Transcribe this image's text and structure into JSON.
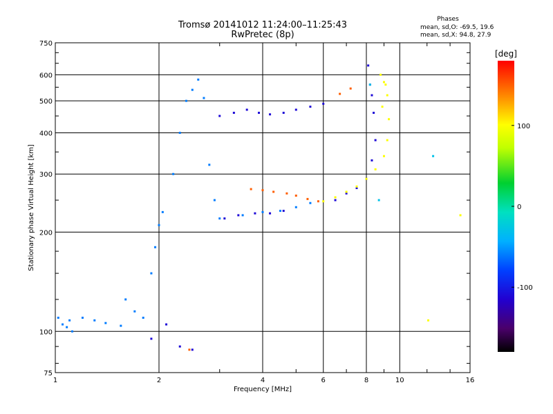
{
  "chart_data": {
    "type": "scatter",
    "title": "Tromsø 20141012 11:24:00–11:25:43",
    "subtitle": "RwPretec (8p)",
    "xlabel": "Frequency [MHz]",
    "ylabel": "Stationary phase Virtual Height [km]",
    "x_scale": "log",
    "y_scale": "log",
    "xlim": [
      1,
      16
    ],
    "ylim": [
      75,
      750
    ],
    "x_ticks": [
      1,
      2,
      4,
      6,
      8,
      10,
      16
    ],
    "y_ticks": [
      75,
      100,
      200,
      300,
      400,
      500,
      600,
      750
    ],
    "grid": true,
    "stats": {
      "heading": "Phases",
      "o_line": "mean, sd,O: -69.5, 19.6",
      "x_line": "mean, sd,X:  94.8, 27.9"
    },
    "colorbar": {
      "label": "[deg]",
      "range": [
        -180,
        180
      ],
      "ticks": [
        100,
        0,
        -100
      ]
    },
    "series": [
      {
        "color_deg": -60,
        "points": [
          [
            1.02,
            110
          ],
          [
            1.05,
            105
          ],
          [
            1.08,
            103
          ],
          [
            1.1,
            108
          ],
          [
            1.12,
            100
          ],
          [
            1.2,
            110
          ],
          [
            1.3,
            108
          ],
          [
            1.4,
            106
          ],
          [
            1.55,
            104
          ],
          [
            1.6,
            125
          ],
          [
            1.7,
            115
          ],
          [
            1.8,
            110
          ],
          [
            1.9,
            150
          ],
          [
            1.95,
            180
          ],
          [
            2.0,
            210
          ],
          [
            2.05,
            230
          ],
          [
            2.2,
            300
          ],
          [
            2.3,
            400
          ],
          [
            2.4,
            500
          ],
          [
            2.5,
            540
          ],
          [
            2.6,
            580
          ],
          [
            2.7,
            510
          ],
          [
            2.8,
            320
          ],
          [
            2.9,
            250
          ],
          [
            3.0,
            220
          ],
          [
            3.5,
            225
          ],
          [
            4.0,
            230
          ],
          [
            4.5,
            232
          ],
          [
            5.0,
            238
          ],
          [
            5.5,
            245
          ]
        ]
      },
      {
        "color_deg": -110,
        "points": [
          [
            1.9,
            95
          ],
          [
            2.1,
            105
          ],
          [
            2.3,
            90
          ],
          [
            2.5,
            88
          ],
          [
            3.0,
            450
          ],
          [
            3.3,
            460
          ],
          [
            3.6,
            470
          ],
          [
            3.9,
            460
          ],
          [
            4.2,
            455
          ],
          [
            4.6,
            460
          ],
          [
            5.0,
            470
          ],
          [
            5.5,
            480
          ],
          [
            6.0,
            490
          ],
          [
            3.1,
            220
          ],
          [
            3.4,
            225
          ],
          [
            3.8,
            228
          ],
          [
            4.2,
            228
          ],
          [
            4.6,
            232
          ],
          [
            6.5,
            250
          ],
          [
            7.0,
            262
          ],
          [
            7.5,
            272
          ],
          [
            8.0,
            290
          ],
          [
            8.3,
            330
          ],
          [
            8.5,
            380
          ],
          [
            8.4,
            460
          ],
          [
            8.2,
            560
          ],
          [
            8.1,
            640
          ],
          [
            8.3,
            520
          ]
        ]
      },
      {
        "color_deg": 150,
        "points": [
          [
            3.7,
            270
          ],
          [
            4.0,
            268
          ],
          [
            4.3,
            265
          ],
          [
            4.7,
            262
          ],
          [
            5.0,
            258
          ],
          [
            5.4,
            252
          ],
          [
            5.8,
            248
          ],
          [
            2.45,
            88
          ],
          [
            6.7,
            525
          ],
          [
            7.2,
            545
          ]
        ]
      },
      {
        "color_deg": 100,
        "points": [
          [
            6.0,
            248
          ],
          [
            6.5,
            255
          ],
          [
            7.0,
            265
          ],
          [
            7.5,
            275
          ],
          [
            8.0,
            290
          ],
          [
            8.5,
            310
          ],
          [
            9.0,
            340
          ],
          [
            9.2,
            380
          ],
          [
            9.3,
            440
          ],
          [
            9.2,
            520
          ],
          [
            9.0,
            570
          ],
          [
            8.8,
            600
          ],
          [
            12.1,
            108
          ],
          [
            8.9,
            480
          ],
          [
            9.1,
            560
          ],
          [
            15.0,
            225
          ]
        ]
      },
      {
        "color_deg": -30,
        "points": [
          [
            12.5,
            340
          ],
          [
            8.7,
            250
          ],
          [
            8.2,
            560
          ]
        ]
      }
    ]
  }
}
